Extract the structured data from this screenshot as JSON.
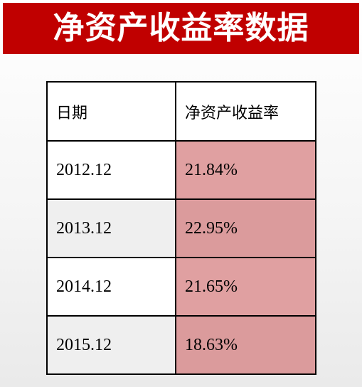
{
  "title": "净资产收益率数据",
  "table": {
    "headers": {
      "date": "日期",
      "roe": "净资产收益率"
    },
    "rows": [
      {
        "date": "2012.12",
        "roe": "21.84%"
      },
      {
        "date": "2013.12",
        "roe": "22.95%"
      },
      {
        "date": "2014.12",
        "roe": "21.65%"
      },
      {
        "date": "2015.12",
        "roe": "18.63%"
      }
    ]
  },
  "colors": {
    "banner": "#c00000",
    "roe_cell": "#e0a0a1"
  }
}
